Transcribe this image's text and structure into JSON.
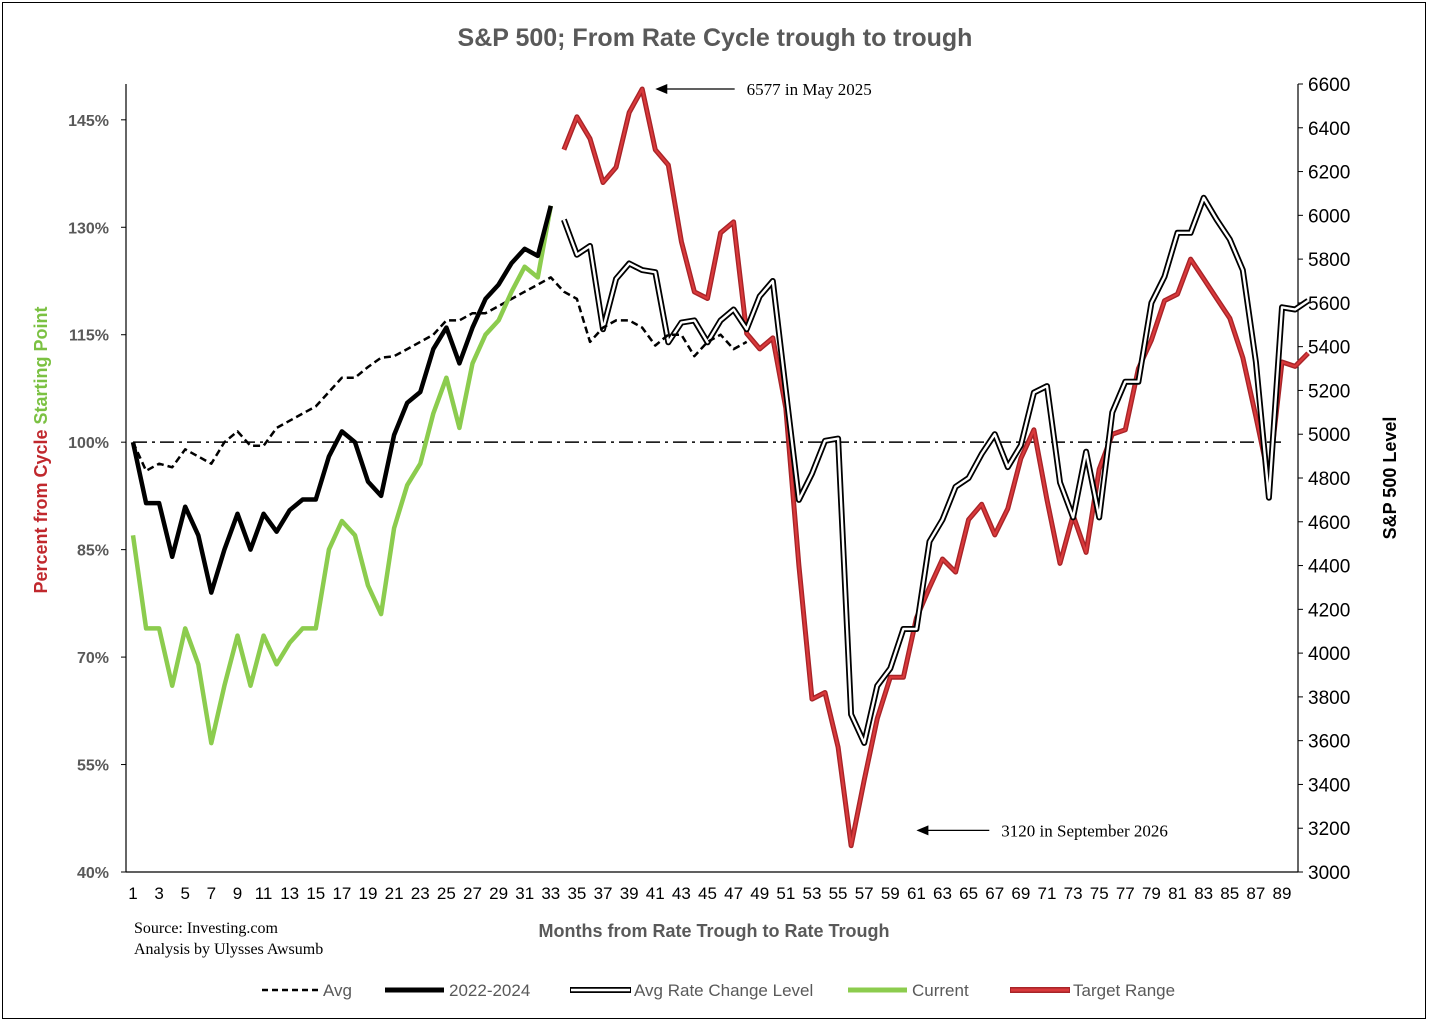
{
  "chart_data": {
    "type": "line",
    "title": "S&P 500; From Rate Cycle trough to trough",
    "xlabel": "Months from Rate Trough to Rate Trough",
    "ylabel_left_parts": [
      "Percent from Cycle ",
      "Starting Point"
    ],
    "ylabel_right": "S&P 500 Level",
    "left_axis": {
      "ylim": [
        40,
        150
      ],
      "ticks": [
        40,
        55,
        70,
        85,
        100,
        115,
        130,
        145
      ],
      "tick_labels": [
        "40%",
        "55%",
        "70%",
        "85%",
        "100%",
        "115%",
        "130%",
        "145%"
      ]
    },
    "right_axis": {
      "ylim": [
        3000,
        6600
      ],
      "ticks": [
        3000,
        3200,
        3400,
        3600,
        3800,
        4000,
        4200,
        4400,
        4600,
        4800,
        5000,
        5200,
        5400,
        5600,
        5800,
        6000,
        6200,
        6400,
        6600
      ]
    },
    "x_range": [
      1,
      90
    ],
    "x_tick_labels": [
      "1",
      "3",
      "5",
      "7",
      "9",
      "11",
      "13",
      "15",
      "17",
      "19",
      "21",
      "23",
      "25",
      "27",
      "29",
      "31",
      "33",
      "35",
      "37",
      "39",
      "41",
      "43",
      "45",
      "47",
      "49",
      "51",
      "53",
      "55",
      "57",
      "59",
      "61",
      "63",
      "65",
      "67",
      "69",
      "71",
      "73",
      "75",
      "77",
      "79",
      "81",
      "83",
      "85",
      "87",
      "89"
    ],
    "reference_line": {
      "value": 100,
      "axis": "left"
    },
    "series": [
      {
        "name": "Avg",
        "axis": "left",
        "x_start": 1,
        "values": [
          100,
          96,
          97,
          96.5,
          99,
          98,
          97,
          100,
          101.5,
          99.5,
          99.5,
          102,
          103,
          104,
          105,
          107,
          109,
          109,
          110.5,
          111.8,
          112,
          113,
          114,
          115,
          117,
          117,
          118,
          118,
          119,
          120,
          121,
          122,
          123,
          121,
          120,
          114,
          116,
          117,
          117,
          116,
          113.5,
          115,
          115,
          112,
          114,
          115,
          113,
          114
        ]
      },
      {
        "name": "2022-2024",
        "axis": "left",
        "x_start": 1,
        "values": [
          100,
          91.5,
          91.5,
          84,
          91,
          87,
          79,
          85,
          90,
          85,
          90,
          87.5,
          90.5,
          92,
          92,
          98,
          101.5,
          100,
          94.5,
          92.5,
          101,
          105.5,
          107,
          113,
          116,
          111,
          116,
          120,
          122,
          125,
          127,
          126,
          133
        ]
      },
      {
        "name": "Current",
        "axis": "left",
        "x_start": 1,
        "values": [
          87,
          74,
          74,
          66,
          74,
          69,
          58,
          66,
          73,
          66,
          73,
          69,
          72,
          74,
          74,
          85,
          89,
          87,
          80,
          76,
          88,
          94,
          97,
          104,
          109,
          102,
          111,
          115,
          117,
          121,
          124.5,
          123,
          133
        ]
      },
      {
        "name": "Avg Rate Change Level",
        "axis": "right",
        "x_start": 34,
        "values": [
          5980,
          5820,
          5860,
          5480,
          5710,
          5780,
          5750,
          5740,
          5420,
          5510,
          5520,
          5420,
          5520,
          5570,
          5480,
          5630,
          5700,
          5200,
          4700,
          4820,
          4970,
          4980,
          3720,
          3590,
          3850,
          3930,
          4110,
          4110,
          4510,
          4610,
          4760,
          4800,
          4910,
          5000,
          4850,
          4950,
          5190,
          5220,
          4780,
          4620,
          4920,
          4620,
          5100,
          5240,
          5240,
          5600,
          5720,
          5920,
          5920,
          6080,
          5980,
          5890,
          5750,
          5330,
          4710,
          5580,
          5570,
          5610
        ]
      },
      {
        "name": "Target Range",
        "axis": "right",
        "x_start": 34,
        "values": [
          6300,
          6450,
          6350,
          6150,
          6220,
          6470,
          6577,
          6300,
          6230,
          5880,
          5650,
          5620,
          5920,
          5970,
          5460,
          5390,
          5440,
          5120,
          4400,
          3790,
          3820,
          3570,
          3120,
          3420,
          3700,
          3890,
          3890,
          4160,
          4300,
          4430,
          4370,
          4610,
          4680,
          4540,
          4660,
          4890,
          5020,
          4700,
          4410,
          4630,
          4460,
          4840,
          5000,
          5020,
          5300,
          5430,
          5610,
          5640,
          5800,
          5710,
          5620,
          5530,
          5350,
          5080,
          4800,
          5330,
          5310,
          5370
        ]
      }
    ],
    "annotations": [
      {
        "text": "6577 in May 2025",
        "target_x": 41,
        "target_value": 6577,
        "text_x": 48,
        "text_value": 6577
      },
      {
        "text": "3120 in September 2026",
        "target_x": 61,
        "target_value": 3190,
        "text_x": 67.5,
        "text_value": 3190
      }
    ],
    "legend_position": "bottom"
  },
  "source_lines": [
    "Source: Investing.com",
    "Analysis by Ulysses Awsumb"
  ],
  "legend_labels": [
    "Avg",
    "2022-2024",
    "Avg Rate Change Level",
    "Current",
    "Target Range"
  ],
  "colors": {
    "avg": "#000000",
    "y2022": "#000000",
    "current": "#8ccc4e",
    "target": "#d9393b",
    "left_label_red": "#c0282d",
    "left_label_green": "#7bc142",
    "axis_text": "#595959"
  }
}
